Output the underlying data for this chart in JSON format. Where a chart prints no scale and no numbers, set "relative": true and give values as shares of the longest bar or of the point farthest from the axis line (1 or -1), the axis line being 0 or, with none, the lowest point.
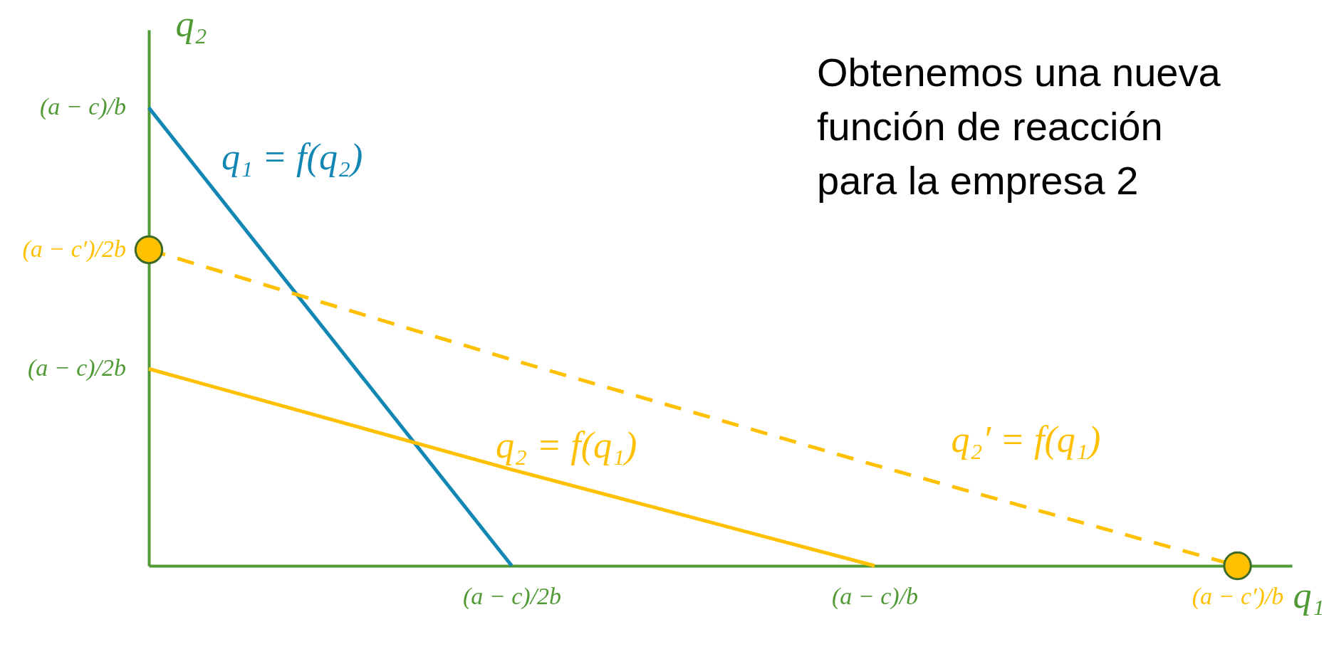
{
  "chart_data": {
    "type": "line",
    "relative": true,
    "xlabel": "q₁",
    "ylabel": "q₂",
    "categories": [
      null,
      "(a − c)/2b",
      "(a − c)/b",
      "(a − c′)/b"
    ],
    "series": [
      {
        "name": "q₁ = f(q₂)",
        "color": "#1287b3",
        "values": [
          1,
          0,
          null,
          null
        ]
      },
      {
        "name": "q₂ = f(q₁)",
        "color": "#ffc000",
        "values": [
          0.43,
          0.21,
          0,
          null
        ]
      },
      {
        "name": "q₂′ = f(q₁)",
        "color": "#ffc000",
        "values": [
          0.69,
          0.45,
          0.22,
          0
        ],
        "line_style": "dashed"
      },
      {
        "type": "scatter",
        "color": "#ffc000",
        "values": [
          0.69,
          null,
          null,
          0
        ],
        "marker": "circle"
      }
    ],
    "annotations": [
      "Obtenemos una nueva función de reacción para la empresa 2",
      "(a − c)/b",
      "(a − c′)/2b",
      "(a − c)/2b"
    ]
  }
}
